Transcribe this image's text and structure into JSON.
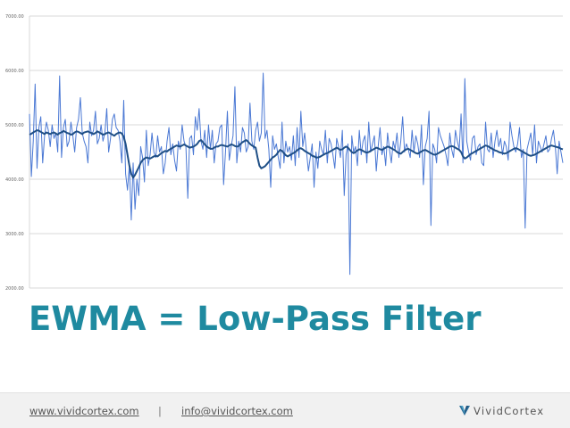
{
  "slide": {
    "title": "EWMA = Low-Pass Filter"
  },
  "footer": {
    "website": "www.vividcortex.com",
    "separator": "|",
    "email": "info@vividcortex.com",
    "brand_name": "VividCortex",
    "brand_icon": "vividcortex-logo-icon"
  },
  "colors": {
    "raw_series": "#4a78d4",
    "ewma_series": "#1f4f86",
    "title": "#1f8aa0",
    "gridline": "#d9d9d9"
  },
  "chart_data": {
    "type": "line",
    "title": "",
    "xlabel": "",
    "ylabel": "",
    "ylim": [
      2000,
      7000
    ],
    "yticks": [
      "2000.00",
      "3000.00",
      "4000.00",
      "5000.00",
      "6000.00",
      "7000.00"
    ],
    "grid": true,
    "legend": "none",
    "series": [
      {
        "key": "raw",
        "values": [
          5200,
          4050,
          4700,
          5750,
          4200,
          4950,
          5150,
          4300,
          4800,
          5050,
          4900,
          4600,
          5000,
          4750,
          4850,
          4500,
          5900,
          4400,
          4950,
          5100,
          4600,
          4700,
          5050,
          4800,
          4500,
          4950,
          5100,
          5500,
          4850,
          4700,
          4600,
          4300,
          5050,
          4800,
          4900,
          5250,
          4650,
          4750,
          5000,
          4700,
          4850,
          5300,
          4500,
          4750,
          5100,
          5200,
          4950,
          4900,
          4700,
          4300,
          5450,
          4100,
          3800,
          4250,
          3250,
          4300,
          3450,
          4000,
          3700,
          4600,
          4400,
          3950,
          4900,
          4250,
          4450,
          4850,
          4500,
          4400,
          4800,
          4500,
          4600,
          4100,
          4300,
          4700,
          4950,
          4450,
          4650,
          4350,
          4150,
          4700,
          4550,
          5000,
          4700,
          4600,
          3650,
          4750,
          4800,
          4450,
          5150,
          4900,
          5300,
          4700,
          4550,
          4900,
          4400,
          5000,
          4550,
          4900,
          4300,
          4650,
          4700,
          4950,
          5000,
          3900,
          4500,
          5250,
          4350,
          4600,
          4800,
          5700,
          4300,
          4700,
          4500,
          4950,
          4850,
          4500,
          4600,
          5400,
          4700,
          4550,
          4900,
          5050,
          4700,
          4850,
          5950,
          4750,
          4900,
          4550,
          3850,
          4800,
          4550,
          4650,
          4400,
          4200,
          5050,
          4300,
          4700,
          4500,
          4600,
          4350,
          4800,
          4250,
          4950,
          4400,
          5250,
          4600,
          4850,
          4500,
          4150,
          4400,
          4650,
          3850,
          4500,
          4200,
          4700,
          4550,
          4450,
          4900,
          4300,
          4750,
          4650,
          4450,
          4200,
          4750,
          4600,
          4400,
          4900,
          3700,
          4450,
          4650,
          2250,
          4800,
          4500,
          4600,
          4250,
          4900,
          4450,
          4700,
          4800,
          4300,
          5050,
          4500,
          4650,
          4800,
          4150,
          4600,
          4950,
          4450,
          4600,
          4250,
          4850,
          4550,
          4300,
          4700,
          4550,
          4850,
          4400,
          4700,
          5150,
          4500,
          4650,
          4550,
          4400,
          4900,
          4500,
          4800,
          4650,
          4400,
          5000,
          3900,
          4600,
          4750,
          5250,
          3150,
          4650,
          4550,
          4300,
          4950,
          4800,
          4700,
          4600,
          4450,
          4250,
          4850,
          4550,
          4400,
          4900,
          4700,
          4550,
          5200,
          4300,
          5850,
          4700,
          4500,
          4350,
          4750,
          4800,
          4450,
          4600,
          4650,
          4300,
          4250,
          5050,
          4550,
          4500,
          4850,
          4400,
          4700,
          4900,
          4600,
          4750,
          4450,
          4700,
          4600,
          4350,
          5050,
          4800,
          4600,
          4500,
          4650,
          4950,
          4400,
          4550,
          3100,
          4550,
          4700,
          4850,
          4450,
          5000,
          4300,
          4700,
          4600,
          4500,
          4650,
          4800,
          4500,
          4550,
          4750,
          4900,
          4600,
          4100,
          4700,
          4500,
          4300
        ]
      },
      {
        "key": "ewma",
        "values": [
          4820,
          4836,
          4860,
          4880,
          4900,
          4893,
          4870,
          4850,
          4830,
          4860,
          4845,
          4830,
          4850,
          4860,
          4840,
          4820,
          4850,
          4860,
          4890,
          4870,
          4850,
          4840,
          4820,
          4830,
          4860,
          4880,
          4870,
          4850,
          4830,
          4860,
          4870,
          4880,
          4860,
          4850,
          4830,
          4850,
          4880,
          4860,
          4840,
          4820,
          4830,
          4850,
          4860,
          4840,
          4820,
          4800,
          4830,
          4850,
          4860,
          4840,
          4780,
          4650,
          4450,
          4250,
          4100,
          4030,
          4080,
          4150,
          4220,
          4300,
          4350,
          4380,
          4400,
          4390,
          4380,
          4400,
          4420,
          4430,
          4420,
          4450,
          4480,
          4500,
          4520,
          4510,
          4540,
          4560,
          4580,
          4600,
          4620,
          4610,
          4600,
          4620,
          4640,
          4620,
          4600,
          4580,
          4590,
          4600,
          4620,
          4650,
          4700,
          4720,
          4680,
          4640,
          4600,
          4580,
          4560,
          4560,
          4580,
          4600,
          4600,
          4620,
          4630,
          4620,
          4610,
          4600,
          4620,
          4640,
          4630,
          4610,
          4600,
          4610,
          4650,
          4680,
          4700,
          4720,
          4690,
          4650,
          4620,
          4600,
          4580,
          4400,
          4250,
          4200,
          4220,
          4240,
          4280,
          4320,
          4360,
          4400,
          4420,
          4450,
          4500,
          4540,
          4520,
          4480,
          4440,
          4420,
          4440,
          4460,
          4480,
          4500,
          4530,
          4560,
          4570,
          4550,
          4520,
          4500,
          4480,
          4460,
          4430,
          4420,
          4400,
          4400,
          4410,
          4430,
          4450,
          4470,
          4480,
          4500,
          4520,
          4540,
          4560,
          4580,
          4560,
          4540,
          4550,
          4580,
          4600,
          4580,
          4540,
          4500,
          4480,
          4500,
          4530,
          4550,
          4540,
          4520,
          4500,
          4490,
          4500,
          4520,
          4540,
          4560,
          4580,
          4570,
          4550,
          4540,
          4560,
          4580,
          4600,
          4590,
          4570,
          4550,
          4530,
          4500,
          4480,
          4470,
          4500,
          4530,
          4550,
          4560,
          4540,
          4520,
          4500,
          4480,
          4470,
          4490,
          4510,
          4530,
          4540,
          4520,
          4500,
          4480,
          4460,
          4450,
          4460,
          4480,
          4500,
          4520,
          4540,
          4560,
          4580,
          4600,
          4610,
          4600,
          4580,
          4560,
          4540,
          4500,
          4420,
          4380,
          4400,
          4430,
          4460,
          4480,
          4500,
          4520,
          4540,
          4560,
          4580,
          4600,
          4620,
          4610,
          4590,
          4570,
          4550,
          4530,
          4520,
          4500,
          4490,
          4480,
          4470,
          4480,
          4500,
          4520,
          4540,
          4560,
          4570,
          4560,
          4540,
          4520,
          4500,
          4480,
          4460,
          4440,
          4430,
          4440,
          4450,
          4470,
          4490,
          4510,
          4530,
          4550,
          4570,
          4590,
          4610,
          4620,
          4610,
          4600,
          4590,
          4580,
          4560,
          4550
        ]
      }
    ]
  }
}
